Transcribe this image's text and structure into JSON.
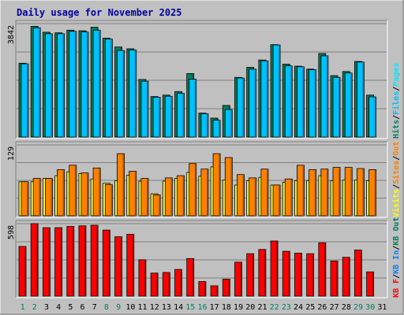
{
  "chart_data": {
    "title": "Daily usage for November 2025",
    "type": "bar",
    "categories": [
      "1",
      "2",
      "3",
      "4",
      "5",
      "6",
      "7",
      "8",
      "9",
      "10",
      "11",
      "12",
      "13",
      "14",
      "15",
      "16",
      "17",
      "18",
      "19",
      "20",
      "21",
      "22",
      "23",
      "24",
      "25",
      "26",
      "27",
      "28",
      "29",
      "30",
      "31"
    ],
    "weekend_days": [
      "1",
      "2",
      "8",
      "9",
      "15",
      "16",
      "22",
      "23",
      "29",
      "30"
    ],
    "colors": {
      "hits": "#00805c",
      "files": "#00c0ff",
      "pages": "#00e8ff",
      "visits": "#ffff00",
      "sites": "#ff8000",
      "kbin": "#ff0000",
      "kbout": "#0080ff",
      "weekend": "#00805c",
      "weekday": "#000000",
      "title": "#0000a0",
      "frame_bg": "#c0c0c0",
      "grid": "#808080"
    },
    "panels": [
      {
        "id": "requests",
        "ytick_label": "3842",
        "ymax": 3842,
        "legend": [
          {
            "text": "Hits",
            "color": "#00805c"
          },
          {
            "text": "Files",
            "color": "#00c0ff"
          },
          {
            "text": "Pages",
            "color": "#00e8ff"
          }
        ],
        "series": [
          {
            "key": "hits",
            "color": "#00805c",
            "offset": 0,
            "values": [
              2500,
              3750,
              3550,
              3530,
              3620,
              3600,
              3720,
              3350,
              3050,
              2990,
              1950,
              1370,
              1420,
              1540,
              2150,
              810,
              640,
              1070,
              2020,
              2360,
              2610,
              3130,
              2470,
              2400,
              2300,
              2830,
              2080,
              2220,
              2560,
              1420,
              0
            ]
          },
          {
            "key": "files",
            "color": "#00c0ff",
            "offset": 1,
            "values": [
              2480,
              3700,
              3500,
              3500,
              3580,
              3560,
              3620,
              3320,
              2930,
              2950,
              1890,
              1350,
              1380,
              1480,
              1960,
              790,
              570,
              930,
              2000,
              2300,
              2580,
              3120,
              2410,
              2380,
              2280,
              2750,
              2020,
              2170,
              2540,
              1360,
              0
            ]
          }
        ]
      },
      {
        "id": "visitors",
        "ytick_label": "129",
        "ymax": 129,
        "legend": [
          {
            "text": "Visits",
            "color": "#ffff00"
          },
          {
            "text": "Sites",
            "color": "#ff8000"
          },
          {
            "text": "Out",
            "color": "#ff8000"
          }
        ],
        "series": [
          {
            "key": "visits",
            "color": "#ffff00",
            "offset": 0,
            "values": [
              62,
              62,
              68,
              73,
              80,
              77,
              67,
              59,
              64,
              74,
              63,
              40,
              63,
              68,
              79,
              72,
              89,
              65,
              56,
              64,
              70,
              56,
              61,
              64,
              64,
              73,
              64,
              65,
              65,
              64,
              0
            ]
          },
          {
            "key": "sites",
            "color": "#ff8000",
            "offset": 1,
            "values": [
              62,
              68,
              68,
              84,
              92,
              78,
              87,
              57,
              113,
              81,
              68,
              38,
              69,
              73,
              95,
              85,
              113,
              106,
              75,
              69,
              85,
              56,
              67,
              92,
              84,
              85,
              88,
              88,
              86,
              84,
              0
            ]
          }
        ]
      },
      {
        "id": "kbytes",
        "ytick_label": "598",
        "ymax": 598,
        "legend": [
          {
            "text": "KB F",
            "color": "#ff0000"
          },
          {
            "text": "KB In",
            "color": "#0080ff"
          },
          {
            "text": "KB Out",
            "color": "#00805c"
          }
        ],
        "series": [
          {
            "key": "kbin",
            "color": "#ff0000",
            "offset": 0,
            "values": [
              410,
              598,
              565,
              565,
              575,
              580,
              585,
              545,
              490,
              510,
              300,
              190,
              195,
              220,
              310,
              120,
              85,
              140,
              280,
              350,
              385,
              455,
              370,
              355,
              350,
              440,
              290,
              320,
              380,
              200,
              0
            ]
          }
        ]
      }
    ]
  }
}
